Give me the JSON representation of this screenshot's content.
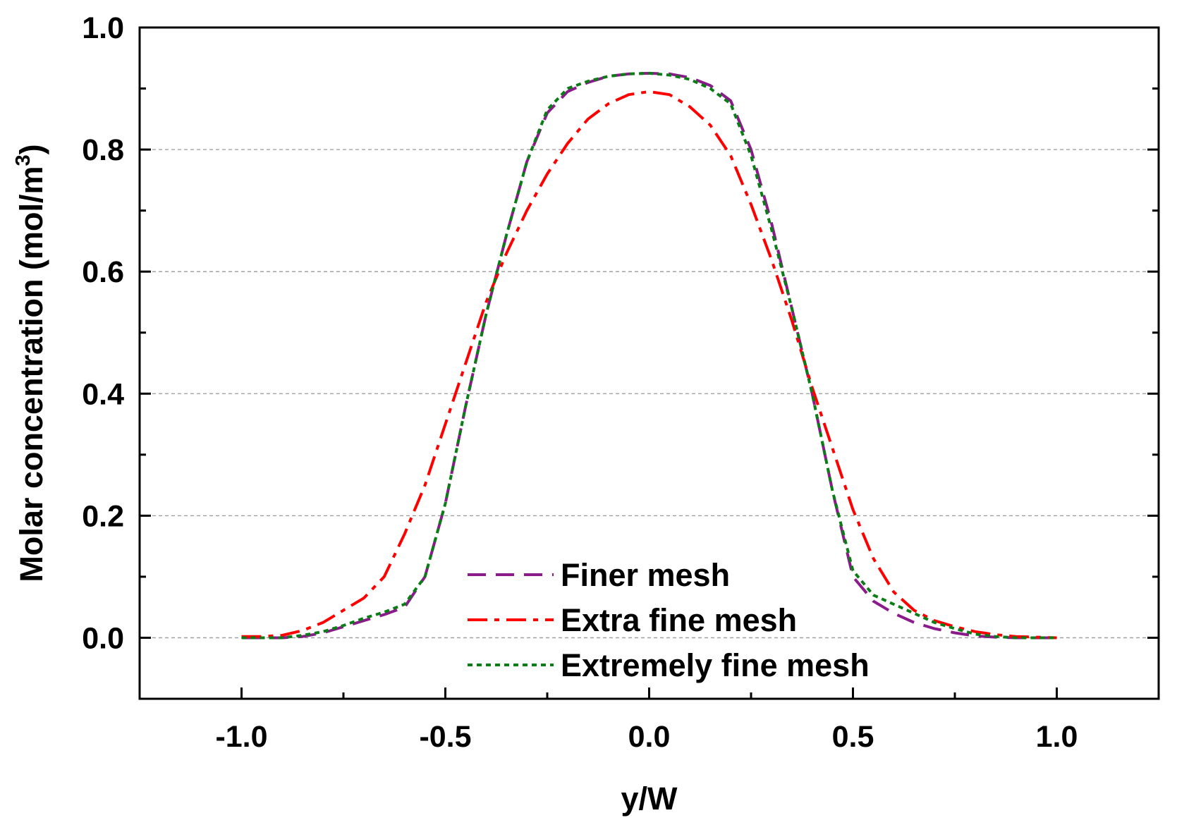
{
  "chart_data": {
    "type": "line",
    "title": "",
    "xlabel": "y/W",
    "ylabel": "Molar concentration (mol/m",
    "ylabel_superscript": "3",
    "ylabel_close": ")",
    "xlim": [
      -1.25,
      1.25
    ],
    "ylim": [
      -0.1,
      1.0
    ],
    "x_ticks": [
      -1.0,
      -0.5,
      0.0,
      0.5,
      1.0
    ],
    "x_tick_labels": [
      "-1.0",
      "-0.5",
      "0.0",
      "0.5",
      "1.0"
    ],
    "x_minor_ticks": [
      -1.25,
      -0.75,
      -0.25,
      0.25,
      0.75,
      1.25
    ],
    "y_ticks": [
      0.0,
      0.2,
      0.4,
      0.6,
      0.8,
      1.0
    ],
    "y_tick_labels": [
      "0.0",
      "0.2",
      "0.4",
      "0.6",
      "0.8",
      "1.0"
    ],
    "y_minor_ticks": [
      -0.1,
      0.1,
      0.3,
      0.5,
      0.7,
      0.9
    ],
    "grid": {
      "horizontal": true,
      "values": [
        0.0,
        0.2,
        0.4,
        0.6,
        0.8
      ]
    },
    "legend_position": "lower-center",
    "series": [
      {
        "name": "Finer mesh",
        "color": "#8b1a8b",
        "style": "dashed",
        "x": [
          -1.0,
          -0.95,
          -0.9,
          -0.85,
          -0.8,
          -0.75,
          -0.7,
          -0.65,
          -0.6,
          -0.55,
          -0.5,
          -0.45,
          -0.4,
          -0.35,
          -0.3,
          -0.25,
          -0.2,
          -0.15,
          -0.1,
          -0.05,
          0.0,
          0.05,
          0.1,
          0.15,
          0.2,
          0.25,
          0.3,
          0.35,
          0.4,
          0.45,
          0.5,
          0.55,
          0.6,
          0.65,
          0.7,
          0.75,
          0.8,
          0.85,
          0.9,
          0.95,
          1.0
        ],
        "y": [
          0.0,
          0.0,
          0.0,
          0.002,
          0.008,
          0.018,
          0.028,
          0.038,
          0.05,
          0.1,
          0.22,
          0.38,
          0.53,
          0.66,
          0.78,
          0.86,
          0.895,
          0.91,
          0.92,
          0.924,
          0.925,
          0.924,
          0.918,
          0.905,
          0.88,
          0.8,
          0.68,
          0.54,
          0.4,
          0.24,
          0.1,
          0.06,
          0.04,
          0.025,
          0.015,
          0.008,
          0.003,
          0.001,
          0.0,
          0.0,
          0.0
        ]
      },
      {
        "name": "Extra fine mesh",
        "color": "#ff0000",
        "style": "dashdot",
        "x": [
          -1.0,
          -0.95,
          -0.9,
          -0.85,
          -0.8,
          -0.75,
          -0.7,
          -0.65,
          -0.6,
          -0.55,
          -0.5,
          -0.45,
          -0.4,
          -0.35,
          -0.3,
          -0.25,
          -0.2,
          -0.15,
          -0.1,
          -0.05,
          0.0,
          0.05,
          0.1,
          0.15,
          0.2,
          0.25,
          0.3,
          0.35,
          0.4,
          0.45,
          0.5,
          0.55,
          0.6,
          0.65,
          0.7,
          0.75,
          0.8,
          0.85,
          0.9,
          0.95,
          1.0
        ],
        "y": [
          0.002,
          0.002,
          0.004,
          0.012,
          0.025,
          0.045,
          0.065,
          0.1,
          0.17,
          0.25,
          0.35,
          0.45,
          0.55,
          0.63,
          0.7,
          0.76,
          0.81,
          0.85,
          0.875,
          0.89,
          0.895,
          0.89,
          0.87,
          0.84,
          0.79,
          0.71,
          0.62,
          0.52,
          0.41,
          0.31,
          0.21,
          0.13,
          0.075,
          0.045,
          0.028,
          0.018,
          0.01,
          0.005,
          0.002,
          0.001,
          0.0
        ]
      },
      {
        "name": "Extremely fine mesh",
        "color": "#0b7d16",
        "style": "dotted",
        "x": [
          -1.0,
          -0.95,
          -0.9,
          -0.85,
          -0.8,
          -0.75,
          -0.7,
          -0.65,
          -0.6,
          -0.55,
          -0.5,
          -0.45,
          -0.4,
          -0.35,
          -0.3,
          -0.25,
          -0.2,
          -0.15,
          -0.1,
          -0.05,
          0.0,
          0.05,
          0.1,
          0.15,
          0.2,
          0.25,
          0.3,
          0.35,
          0.4,
          0.45,
          0.5,
          0.55,
          0.6,
          0.65,
          0.7,
          0.75,
          0.8,
          0.85,
          0.9,
          0.95,
          1.0
        ],
        "y": [
          0.0,
          0.0,
          0.0,
          0.004,
          0.01,
          0.02,
          0.032,
          0.042,
          0.055,
          0.1,
          0.22,
          0.38,
          0.53,
          0.66,
          0.78,
          0.865,
          0.9,
          0.912,
          0.92,
          0.924,
          0.925,
          0.922,
          0.915,
          0.9,
          0.875,
          0.79,
          0.67,
          0.54,
          0.4,
          0.24,
          0.11,
          0.07,
          0.055,
          0.04,
          0.025,
          0.015,
          0.006,
          0.002,
          0.0,
          0.0,
          0.0
        ]
      }
    ]
  }
}
